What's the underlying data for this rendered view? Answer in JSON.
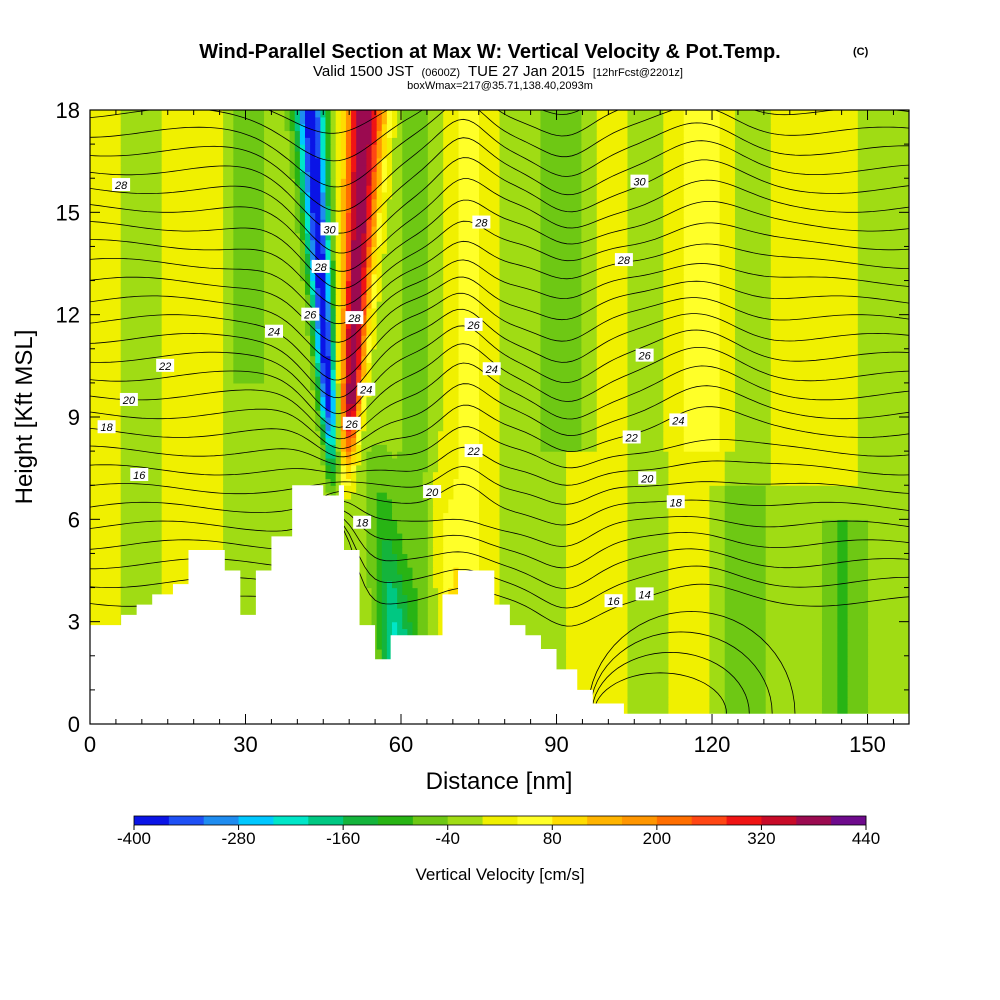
{
  "header": {
    "title": "Wind-Parallel Section at Max W: Vertical Velocity & Pot.Temp.",
    "title_mark": "(C)",
    "sub_main": "Valid 1500 JST",
    "sub_utc": "(0600Z)",
    "sub_date": "TUE 27 Jan 2015",
    "sub_fcst": "[12hrFcst@2201z]",
    "boxline": "boxWmax=217@35.71,138.40,2093m"
  },
  "chart_data": {
    "type": "heatmap",
    "xlabel": "Distance [nm]",
    "ylabel": "Height [Kft MSL]",
    "xlim": [
      0,
      158
    ],
    "ylim": [
      0,
      18
    ],
    "x_ticks": [
      0,
      30,
      60,
      90,
      120,
      150
    ],
    "y_ticks": [
      0,
      3,
      6,
      9,
      12,
      15,
      18
    ],
    "colorbar": {
      "label": "Vertical Velocity [cm/s]",
      "tick_labels": [
        "-400",
        "-280",
        "-160",
        "-40",
        "80",
        "200",
        "320",
        "440"
      ],
      "levels": [
        -400,
        -360,
        -320,
        -280,
        -240,
        -200,
        -160,
        -120,
        -80,
        -40,
        0,
        40,
        80,
        120,
        160,
        200,
        240,
        280,
        320,
        360,
        400,
        440
      ],
      "colors": [
        "#0a14e6",
        "#1e50f5",
        "#1e8cf0",
        "#00c8ff",
        "#00e6c8",
        "#00c882",
        "#14b43c",
        "#28b414",
        "#6ec814",
        "#a0dc14",
        "#f0f000",
        "#ffff28",
        "#ffdc00",
        "#ffb400",
        "#ff9600",
        "#ff6e00",
        "#ff4614",
        "#f01414",
        "#c80a28",
        "#9b0a50",
        "#6e0a8c"
      ]
    },
    "terrain": [
      [
        0,
        2.9
      ],
      [
        6,
        2.9
      ],
      [
        6,
        3.2
      ],
      [
        9,
        3.2
      ],
      [
        9,
        3.5
      ],
      [
        12,
        3.5
      ],
      [
        12,
        3.8
      ],
      [
        16,
        3.8
      ],
      [
        16,
        4.1
      ],
      [
        19,
        4.1
      ],
      [
        19,
        5.1
      ],
      [
        26,
        5.1
      ],
      [
        26,
        4.5
      ],
      [
        29,
        4.5
      ],
      [
        29,
        3.2
      ],
      [
        32,
        3.2
      ],
      [
        32,
        4.5
      ],
      [
        35,
        4.5
      ],
      [
        35,
        5.5
      ],
      [
        39,
        5.5
      ],
      [
        39,
        7.0
      ],
      [
        45,
        7.0
      ],
      [
        45,
        6.7
      ],
      [
        48,
        6.7
      ],
      [
        48,
        7.0
      ],
      [
        49,
        7.0
      ],
      [
        49,
        5.1
      ],
      [
        52,
        5.1
      ],
      [
        52,
        2.9
      ],
      [
        55,
        2.9
      ],
      [
        55,
        1.9
      ],
      [
        58,
        1.9
      ],
      [
        58,
        2.6
      ],
      [
        68,
        2.6
      ],
      [
        68,
        3.8
      ],
      [
        71,
        3.8
      ],
      [
        71,
        4.5
      ],
      [
        78,
        4.5
      ],
      [
        78,
        3.5
      ],
      [
        81,
        3.5
      ],
      [
        81,
        2.9
      ],
      [
        84,
        2.9
      ],
      [
        84,
        2.6
      ],
      [
        87,
        2.6
      ],
      [
        87,
        2.2
      ],
      [
        90,
        2.2
      ],
      [
        90,
        1.6
      ],
      [
        94,
        1.6
      ],
      [
        94,
        1.0
      ],
      [
        97,
        1.0
      ],
      [
        97,
        0.6
      ],
      [
        103,
        0.6
      ],
      [
        103,
        0.3
      ],
      [
        158,
        0.3
      ]
    ],
    "theta_labels": [
      {
        "text": "28",
        "x": 6,
        "y": 15.8
      },
      {
        "text": "24",
        "x": 35.5,
        "y": 11.5
      },
      {
        "text": "22",
        "x": 14.5,
        "y": 10.5
      },
      {
        "text": "20",
        "x": 7.5,
        "y": 9.5
      },
      {
        "text": "18",
        "x": 3.2,
        "y": 8.7
      },
      {
        "text": "16",
        "x": 9.5,
        "y": 7.3
      },
      {
        "text": "30",
        "x": 46.2,
        "y": 14.5
      },
      {
        "text": "28",
        "x": 44.5,
        "y": 13.4
      },
      {
        "text": "26",
        "x": 42.5,
        "y": 12.0
      },
      {
        "text": "28",
        "x": 51.0,
        "y": 11.9
      },
      {
        "text": "24",
        "x": 53.3,
        "y": 9.8
      },
      {
        "text": "26",
        "x": 50.5,
        "y": 8.8
      },
      {
        "text": "18",
        "x": 52.5,
        "y": 5.9
      },
      {
        "text": "28",
        "x": 75.5,
        "y": 14.7
      },
      {
        "text": "26",
        "x": 74.0,
        "y": 11.7
      },
      {
        "text": "24",
        "x": 77.5,
        "y": 10.4
      },
      {
        "text": "22",
        "x": 74.0,
        "y": 8.0
      },
      {
        "text": "20",
        "x": 66.0,
        "y": 6.8
      },
      {
        "text": "30",
        "x": 106.0,
        "y": 15.9
      },
      {
        "text": "28",
        "x": 103.0,
        "y": 13.6
      },
      {
        "text": "26",
        "x": 107.0,
        "y": 10.8
      },
      {
        "text": "22",
        "x": 104.5,
        "y": 8.4
      },
      {
        "text": "24",
        "x": 113.5,
        "y": 8.9
      },
      {
        "text": "20",
        "x": 107.5,
        "y": 7.2
      },
      {
        "text": "18",
        "x": 113.0,
        "y": 6.5
      },
      {
        "text": "16",
        "x": 101.0,
        "y": 3.6
      },
      {
        "text": "14",
        "x": 107.0,
        "y": 3.8
      }
    ]
  }
}
